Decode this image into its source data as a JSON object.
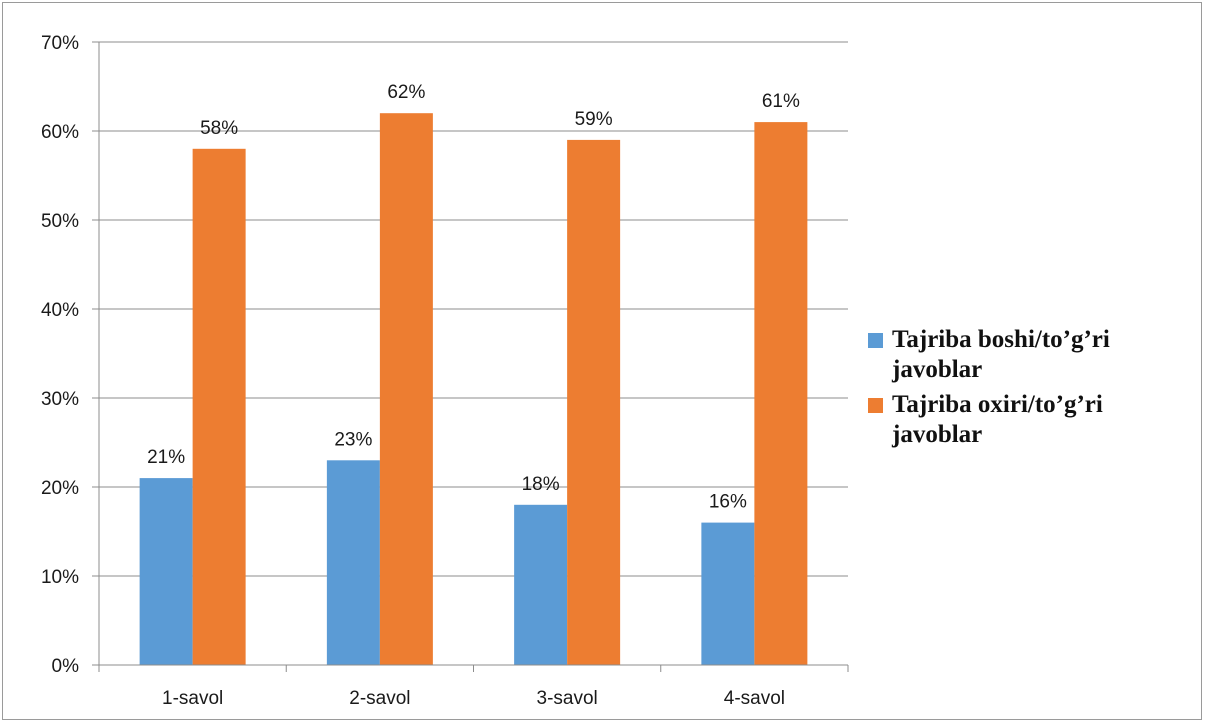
{
  "chart_data": {
    "type": "bar",
    "categories": [
      "1-savol",
      "2-savol",
      "3-savol",
      "4-savol"
    ],
    "series": [
      {
        "name": "Tajriba boshi/to’g’ri javoblar",
        "legend_lines": [
          "Tajriba boshi/to’g’ri",
          "javoblar"
        ],
        "values": [
          0.21,
          0.23,
          0.18,
          0.16
        ],
        "labels": [
          "21%",
          "23%",
          "18%",
          "16%"
        ],
        "color": "#5b9bd5"
      },
      {
        "name": "Tajriba oxiri/to’g’ri javoblar",
        "legend_lines": [
          "Tajriba oxiri/to’g’ri",
          "javoblar"
        ],
        "values": [
          0.58,
          0.62,
          0.59,
          0.61
        ],
        "labels": [
          "58%",
          "62%",
          "59%",
          "61%"
        ],
        "color": "#ed7d31"
      }
    ],
    "ylim": [
      0,
      0.7
    ],
    "yticks": [
      0,
      0.1,
      0.2,
      0.3,
      0.4,
      0.5,
      0.6,
      0.7
    ],
    "ytick_labels": [
      "0%",
      "10%",
      "20%",
      "30%",
      "40%",
      "50%",
      "60%",
      "70%"
    ],
    "grid": true,
    "legend_position": "right",
    "title": "",
    "xlabel": "",
    "ylabel": ""
  }
}
